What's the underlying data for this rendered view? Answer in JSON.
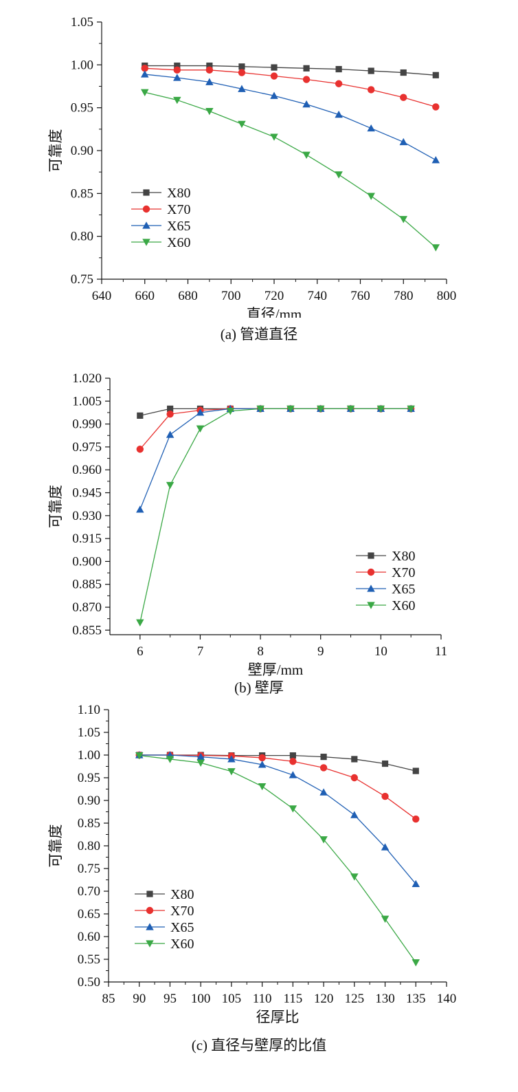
{
  "chart_data": [
    {
      "type": "line",
      "caption": "(a) 管道直径",
      "xlabel": "直径/mm",
      "ylabel": "可靠度",
      "xlim": [
        640,
        800
      ],
      "ylim": [
        0.75,
        1.05
      ],
      "xticks": [
        "640",
        "660",
        "680",
        "700",
        "720",
        "740",
        "760",
        "780",
        "800"
      ],
      "yticks": [
        "0.75",
        "0.80",
        "0.85",
        "0.90",
        "0.95",
        "1.00",
        "1.05"
      ],
      "legend_position": "lower-left",
      "x": [
        660,
        675,
        690,
        705,
        720,
        735,
        750,
        765,
        780,
        795
      ],
      "series": [
        {
          "name": "X80",
          "color": "#444444",
          "marker": "square",
          "values": [
            0.999,
            0.999,
            0.999,
            0.998,
            0.997,
            0.996,
            0.995,
            0.993,
            0.991,
            0.988
          ]
        },
        {
          "name": "X70",
          "color": "#e8312f",
          "marker": "circle",
          "values": [
            0.996,
            0.994,
            0.994,
            0.991,
            0.987,
            0.983,
            0.978,
            0.971,
            0.962,
            0.951
          ]
        },
        {
          "name": "X65",
          "color": "#1f5fb4",
          "marker": "triangle-up",
          "values": [
            0.989,
            0.985,
            0.98,
            0.972,
            0.964,
            0.954,
            0.942,
            0.926,
            0.91,
            0.889
          ]
        },
        {
          "name": "X60",
          "color": "#3aa845",
          "marker": "triangle-down",
          "values": [
            0.968,
            0.959,
            0.946,
            0.931,
            0.916,
            0.895,
            0.872,
            0.847,
            0.82,
            0.787
          ]
        }
      ]
    },
    {
      "type": "line",
      "caption": "(b) 壁厚",
      "xlabel": "壁厚/mm",
      "ylabel": "可靠度",
      "xlim": [
        5.5,
        11
      ],
      "ylim": [
        0.852,
        1.02
      ],
      "xticks": [
        "6",
        "7",
        "8",
        "9",
        "10",
        "11"
      ],
      "yticks": [
        "0.855",
        "0.870",
        "0.885",
        "0.900",
        "0.915",
        "0.930",
        "0.945",
        "0.960",
        "0.975",
        "0.990",
        "1.005",
        "1.020"
      ],
      "legend_position": "lower-right",
      "x": [
        6,
        6.5,
        7,
        7.5,
        8,
        8.5,
        9,
        9.5,
        10,
        10.5
      ],
      "series": [
        {
          "name": "X80",
          "color": "#444444",
          "marker": "square",
          "values": [
            0.9955,
            1.0,
            1.0,
            1.0,
            1.0,
            1.0,
            1.0,
            1.0,
            1.0,
            1.0
          ]
        },
        {
          "name": "X70",
          "color": "#e8312f",
          "marker": "circle",
          "values": [
            0.9735,
            0.9965,
            0.999,
            1.0,
            1.0,
            1.0,
            1.0,
            1.0,
            1.0,
            1.0
          ]
        },
        {
          "name": "X65",
          "color": "#1f5fb4",
          "marker": "triangle-up",
          "values": [
            0.934,
            0.983,
            0.9975,
            1.0,
            1.0,
            1.0,
            1.0,
            1.0,
            1.0,
            1.0
          ]
        },
        {
          "name": "X60",
          "color": "#3aa845",
          "marker": "triangle-down",
          "values": [
            0.86,
            0.95,
            0.987,
            0.9985,
            1.0,
            1.0,
            1.0,
            1.0,
            1.0,
            1.0
          ]
        }
      ]
    },
    {
      "type": "line",
      "caption": "(c) 直径与壁厚的比值",
      "xlabel": "径厚比",
      "ylabel": "可靠度",
      "xlim": [
        85,
        140
      ],
      "ylim": [
        0.5,
        1.1
      ],
      "xticks": [
        "85",
        "90",
        "95",
        "100",
        "105",
        "110",
        "115",
        "120",
        "125",
        "130",
        "135",
        "140"
      ],
      "yticks": [
        "0.50",
        "0.55",
        "0.60",
        "0.65",
        "0.70",
        "0.75",
        "0.80",
        "0.85",
        "0.90",
        "0.95",
        "1.00",
        "1.05",
        "1.10"
      ],
      "legend_position": "lower-left",
      "x": [
        90,
        95,
        100,
        105,
        110,
        115,
        120,
        125,
        130,
        135
      ],
      "series": [
        {
          "name": "X80",
          "color": "#444444",
          "marker": "square",
          "values": [
            1.0,
            1.0,
            1.0,
            0.999,
            0.999,
            0.999,
            0.996,
            0.991,
            0.981,
            0.965
          ]
        },
        {
          "name": "X70",
          "color": "#e8312f",
          "marker": "circle",
          "values": [
            1.0,
            1.0,
            0.999,
            0.998,
            0.994,
            0.986,
            0.972,
            0.95,
            0.909,
            0.859
          ]
        },
        {
          "name": "X65",
          "color": "#1f5fb4",
          "marker": "triangle-up",
          "values": [
            1.0,
            1.0,
            0.996,
            0.991,
            0.979,
            0.956,
            0.918,
            0.868,
            0.797,
            0.716
          ]
        },
        {
          "name": "X60",
          "color": "#3aa845",
          "marker": "triangle-down",
          "values": [
            0.999,
            0.991,
            0.983,
            0.964,
            0.931,
            0.882,
            0.814,
            0.732,
            0.639,
            0.543
          ]
        }
      ]
    }
  ]
}
